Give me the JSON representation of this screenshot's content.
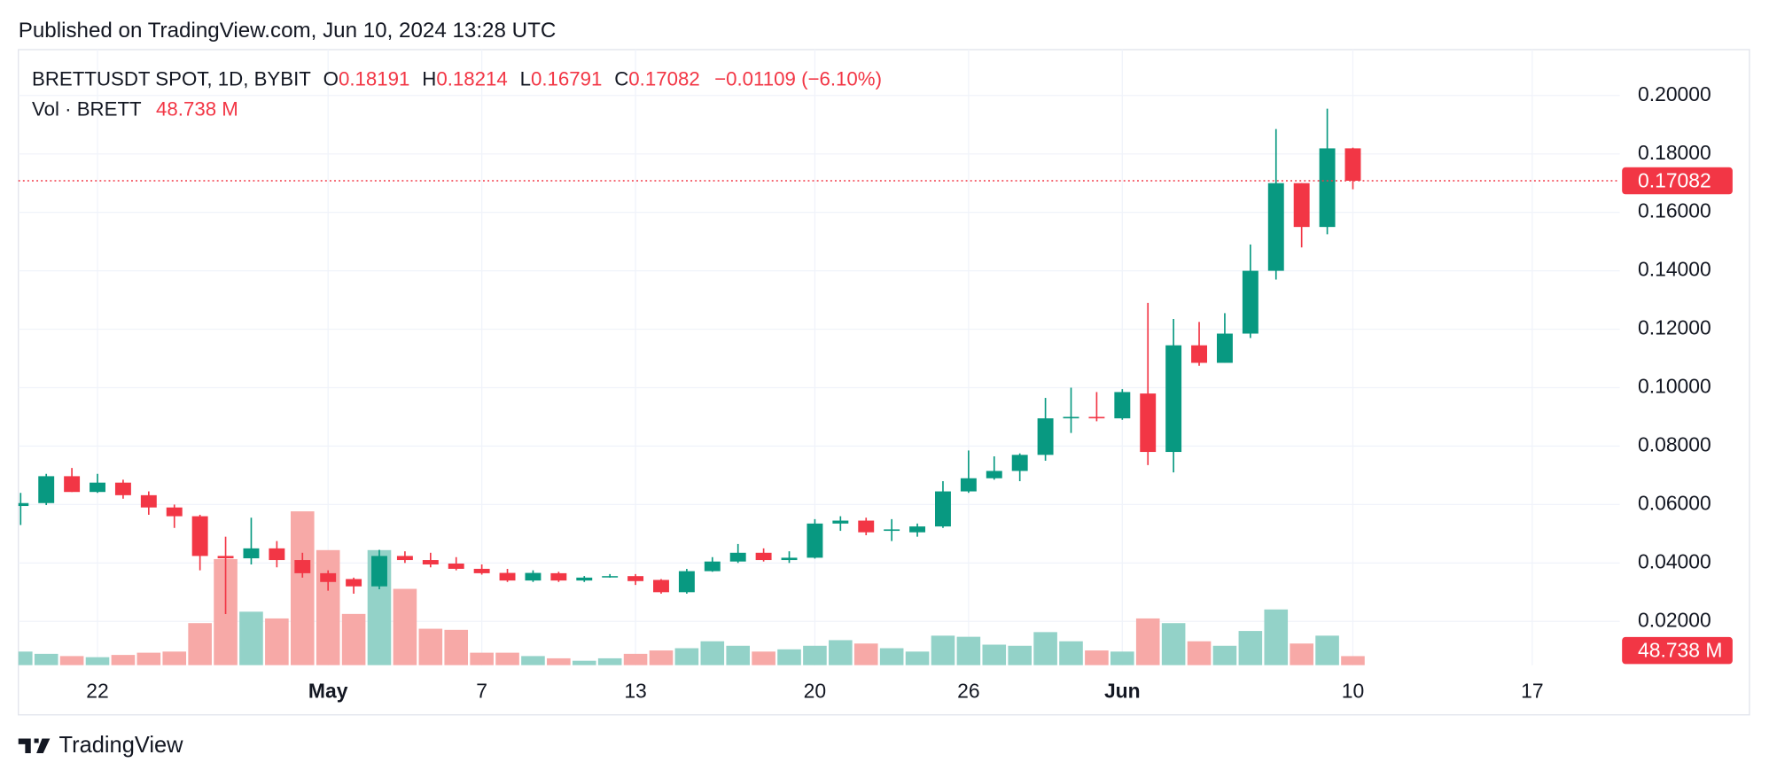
{
  "header": "Published on TradingView.com, Jun 10, 2024 13:28 UTC",
  "footer": "TradingView",
  "chart_data": {
    "type": "candlestick",
    "legend": {
      "symbol": "BRETTUSDT SPOT, 1D, BYBIT",
      "ohlc": [
        {
          "key": "O",
          "value": "0.18191"
        },
        {
          "key": "H",
          "value": "0.18214"
        },
        {
          "key": "L",
          "value": "0.16791"
        },
        {
          "key": "C",
          "value": "0.17082"
        }
      ],
      "change": "−0.01109 (−6.10%)",
      "volume_title": "Vol · BRETT",
      "volume_value": "48.738 M"
    },
    "up_color": "#089981",
    "down_color": "#f23645",
    "volume_up_color": "#93d2c8",
    "volume_down_color": "#f7a9a7",
    "x": [
      "2024-04-19",
      "2024-04-20",
      "2024-04-21",
      "2024-04-22",
      "2024-04-23",
      "2024-04-24",
      "2024-04-25",
      "2024-04-26",
      "2024-04-27",
      "2024-04-28",
      "2024-04-29",
      "2024-04-30",
      "2024-05-01",
      "2024-05-02",
      "2024-05-03",
      "2024-05-04",
      "2024-05-05",
      "2024-05-06",
      "2024-05-07",
      "2024-05-08",
      "2024-05-09",
      "2024-05-10",
      "2024-05-11",
      "2024-05-12",
      "2024-05-13",
      "2024-05-14",
      "2024-05-15",
      "2024-05-16",
      "2024-05-17",
      "2024-05-18",
      "2024-05-19",
      "2024-05-20",
      "2024-05-21",
      "2024-05-22",
      "2024-05-23",
      "2024-05-24",
      "2024-05-25",
      "2024-05-26",
      "2024-05-27",
      "2024-05-28",
      "2024-05-29",
      "2024-05-30",
      "2024-05-31",
      "2024-06-01",
      "2024-06-02",
      "2024-06-03",
      "2024-06-04",
      "2024-06-05",
      "2024-06-06",
      "2024-06-07",
      "2024-06-08",
      "2024-06-09",
      "2024-06-10"
    ],
    "open": [
      0.0595,
      0.0605,
      0.0697,
      0.0643,
      0.0675,
      0.0632,
      0.059,
      0.056,
      0.0424,
      0.0416,
      0.045,
      0.041,
      0.0365,
      0.0345,
      0.032,
      0.0424,
      0.041,
      0.0398,
      0.038,
      0.0366,
      0.034,
      0.0365,
      0.034,
      0.0352,
      0.0355,
      0.0342,
      0.03,
      0.0372,
      0.0405,
      0.0435,
      0.041,
      0.0418,
      0.0535,
      0.0545,
      0.051,
      0.0505,
      0.0525,
      0.0645,
      0.069,
      0.0715,
      0.077,
      0.0895,
      0.09,
      0.0895,
      0.098,
      0.078,
      0.1145,
      0.1085,
      0.1185,
      0.14,
      0.17,
      0.155,
      0.18191
    ],
    "high": [
      0.064,
      0.0705,
      0.0725,
      0.0705,
      0.0685,
      0.0645,
      0.06,
      0.0565,
      0.049,
      0.0555,
      0.0475,
      0.0435,
      0.0375,
      0.035,
      0.0445,
      0.044,
      0.0435,
      0.042,
      0.0395,
      0.038,
      0.0375,
      0.037,
      0.0355,
      0.0362,
      0.0362,
      0.0345,
      0.038,
      0.042,
      0.0465,
      0.045,
      0.044,
      0.055,
      0.056,
      0.0555,
      0.055,
      0.0535,
      0.068,
      0.0785,
      0.0765,
      0.0775,
      0.0965,
      0.1,
      0.0985,
      0.0995,
      0.129,
      0.1235,
      0.1225,
      0.1255,
      0.149,
      0.1885,
      0.17,
      0.1955,
      0.18214
    ],
    "low": [
      0.053,
      0.0598,
      0.0643,
      0.064,
      0.062,
      0.0565,
      0.052,
      0.0375,
      0.0225,
      0.0395,
      0.0385,
      0.035,
      0.0305,
      0.0295,
      0.031,
      0.04,
      0.0385,
      0.0375,
      0.036,
      0.0335,
      0.0335,
      0.0335,
      0.0335,
      0.035,
      0.0325,
      0.0295,
      0.0295,
      0.037,
      0.04,
      0.0405,
      0.04,
      0.0415,
      0.051,
      0.0495,
      0.0475,
      0.049,
      0.052,
      0.064,
      0.0685,
      0.068,
      0.075,
      0.0845,
      0.0885,
      0.089,
      0.0735,
      0.071,
      0.1075,
      0.1085,
      0.117,
      0.137,
      0.148,
      0.1525,
      0.16791
    ],
    "close": [
      0.0605,
      0.0697,
      0.0643,
      0.0675,
      0.0632,
      0.059,
      0.056,
      0.0424,
      0.0416,
      0.045,
      0.041,
      0.0365,
      0.0335,
      0.032,
      0.0424,
      0.041,
      0.0395,
      0.038,
      0.0365,
      0.034,
      0.0366,
      0.034,
      0.035,
      0.0355,
      0.0338,
      0.03,
      0.0372,
      0.0405,
      0.0435,
      0.041,
      0.0418,
      0.0535,
      0.0545,
      0.0505,
      0.0515,
      0.0525,
      0.0645,
      0.069,
      0.0715,
      0.077,
      0.0895,
      0.09,
      0.0895,
      0.0985,
      0.078,
      0.1145,
      0.1085,
      0.1185,
      0.14,
      0.17,
      0.155,
      0.1819,
      0.17082
    ],
    "volume": [
      73,
      61,
      49,
      43,
      55,
      67,
      73,
      225,
      567,
      286,
      250,
      822,
      615,
      274,
      615,
      408,
      195,
      189,
      67,
      67,
      49,
      37,
      24,
      37,
      61,
      79,
      91,
      128,
      104,
      73,
      85,
      104,
      134,
      116,
      91,
      73,
      158,
      152,
      110,
      104,
      177,
      128,
      79,
      73,
      250,
      225,
      128,
      104,
      183,
      298,
      116,
      158,
      48.738
    ],
    "xlim": [
      "2024-04-19",
      "2024-06-20"
    ],
    "xticks": [
      {
        "value": "2024-04-22",
        "label": "22"
      },
      {
        "value": "2024-05-01",
        "label": "May"
      },
      {
        "value": "2024-05-07",
        "label": "7"
      },
      {
        "value": "2024-05-13",
        "label": "13"
      },
      {
        "value": "2024-05-20",
        "label": "20"
      },
      {
        "value": "2024-05-26",
        "label": "26"
      },
      {
        "value": "2024-06-01",
        "label": "Jun"
      },
      {
        "value": "2024-06-10",
        "label": "10"
      },
      {
        "value": "2024-06-17",
        "label": "17"
      }
    ],
    "ylim": [
      0.005,
      0.2157
    ],
    "yticks": [
      {
        "value": 0.02,
        "label": "0.02000"
      },
      {
        "value": 0.04,
        "label": "0.04000"
      },
      {
        "value": 0.06,
        "label": "0.06000"
      },
      {
        "value": 0.08,
        "label": "0.08000"
      },
      {
        "value": 0.1,
        "label": "0.10000"
      },
      {
        "value": 0.12,
        "label": "0.12000"
      },
      {
        "value": 0.14,
        "label": "0.14000"
      },
      {
        "value": 0.16,
        "label": "0.16000"
      },
      {
        "value": 0.18,
        "label": "0.18000"
      },
      {
        "value": 0.2,
        "label": "0.20000"
      }
    ],
    "grid": true
  }
}
